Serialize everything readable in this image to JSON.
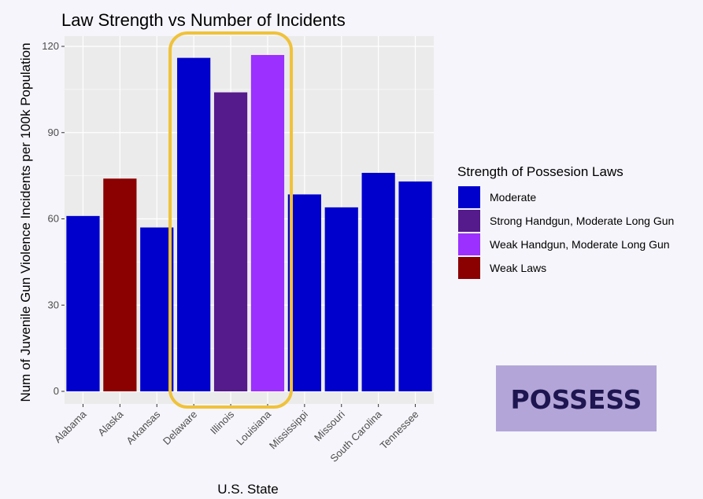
{
  "chart_data": {
    "type": "bar",
    "title": "Law Strength vs Number of Incidents",
    "xlabel": "U.S. State",
    "ylabel": "Num of Juvenile Gun Violence Incidents per 100k Population",
    "categories": [
      "Alabama",
      "Alaska",
      "Arkansas",
      "Delaware",
      "Illinois",
      "Louisiana",
      "Mississippi",
      "Missouri",
      "South Carolina",
      "Tennessee"
    ],
    "values": [
      61,
      74,
      57,
      116,
      104,
      117,
      68.5,
      64,
      76,
      73
    ],
    "groups": [
      "Moderate",
      "Weak Laws",
      "Moderate",
      "Moderate",
      "Strong Handgun, Moderate Long Gun",
      "Weak Handgun, Moderate Long Gun",
      "Moderate",
      "Moderate",
      "Moderate",
      "Moderate"
    ],
    "ylim": [
      0,
      123
    ],
    "yticks": [
      0,
      30,
      60,
      90,
      120
    ],
    "grid": true,
    "legend": {
      "title": "Strength of Possesion Laws",
      "position": "right",
      "entries": [
        {
          "name": "Moderate",
          "color": "#0000cd"
        },
        {
          "name": "Strong Handgun, Moderate Long Gun",
          "color": "#551a8b"
        },
        {
          "name": "Weak Handgun, Moderate Long Gun",
          "color": "#9b30ff"
        },
        {
          "name": "Weak Laws",
          "color": "#8b0000"
        }
      ]
    },
    "highlight": {
      "categories": [
        "Delaware",
        "Illinois",
        "Louisiana"
      ],
      "color": "#f0c23a"
    }
  },
  "badge": {
    "label": "POSSESS",
    "background": "#b3a5d8",
    "text_color": "#1e1650"
  },
  "colors": {
    "panel_bg": "#ebebeb",
    "grid": "#ffffff"
  }
}
